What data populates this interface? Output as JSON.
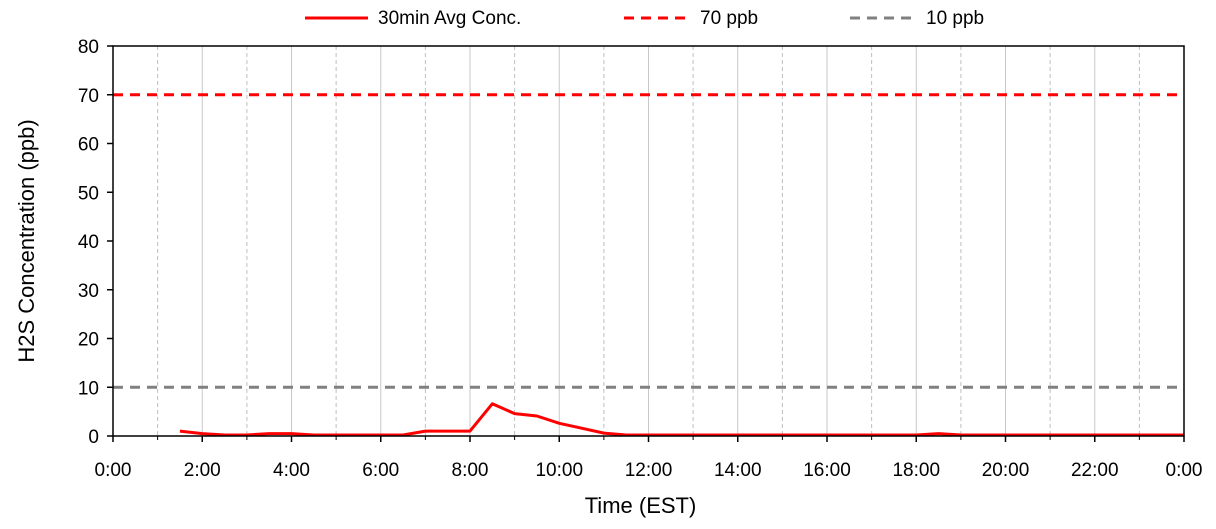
{
  "chart_data": {
    "type": "line",
    "title": "",
    "xlabel": "Time (EST)",
    "ylabel": "H2S Concentration (ppb)",
    "xlim": [
      "0:00",
      "24:00"
    ],
    "ylim": [
      0,
      80
    ],
    "x_tick_labels": [
      "0:00",
      "2:00",
      "4:00",
      "6:00",
      "8:00",
      "10:00",
      "12:00",
      "14:00",
      "16:00",
      "18:00",
      "20:00",
      "22:00",
      "0:00"
    ],
    "y_tick_labels": [
      "0",
      "10",
      "20",
      "30",
      "40",
      "50",
      "60",
      "70",
      "80"
    ],
    "grid": "on (vertical, every 1 hour)",
    "legend_position": "top",
    "series": [
      {
        "name": "30min Avg Conc.",
        "style": "solid",
        "color": "#ff0000",
        "x": [
          "1:30",
          "2:00",
          "2:30",
          "3:00",
          "3:30",
          "4:00",
          "4:30",
          "5:00",
          "5:30",
          "6:00",
          "6:30",
          "7:00",
          "7:30",
          "8:00",
          "8:30",
          "9:00",
          "9:30",
          "10:00",
          "10:30",
          "11:00",
          "11:30",
          "12:00",
          "12:30",
          "13:00",
          "13:30",
          "14:00",
          "14:30",
          "15:00",
          "15:30",
          "16:00",
          "16:30",
          "17:00",
          "17:30",
          "18:00",
          "18:30",
          "19:00",
          "19:30",
          "20:00",
          "20:30",
          "21:00",
          "21:30",
          "22:00",
          "22:30",
          "23:00",
          "23:30",
          "0:00"
        ],
        "values": [
          1.0,
          0.5,
          0.2,
          0.2,
          0.5,
          0.5,
          0.2,
          0.2,
          0.2,
          0.2,
          0.2,
          1.0,
          1.0,
          1.0,
          6.6,
          4.6,
          4.1,
          2.6,
          1.6,
          0.6,
          0.2,
          0.2,
          0.2,
          0.2,
          0.2,
          0.2,
          0.2,
          0.2,
          0.2,
          0.2,
          0.2,
          0.2,
          0.2,
          0.2,
          0.5,
          0.2,
          0.2,
          0.2,
          0.2,
          0.2,
          0.2,
          0.2,
          0.2,
          0.2,
          0.2,
          0.2
        ]
      },
      {
        "name": "70 ppb",
        "style": "dashed",
        "color": "#ff0000",
        "x": [
          "0:00",
          "0:00"
        ],
        "values": [
          70,
          70
        ]
      },
      {
        "name": "10 ppb",
        "style": "dashed",
        "color": "#808080",
        "x": [
          "0:00",
          "0:00"
        ],
        "values": [
          10,
          10
        ]
      }
    ]
  }
}
